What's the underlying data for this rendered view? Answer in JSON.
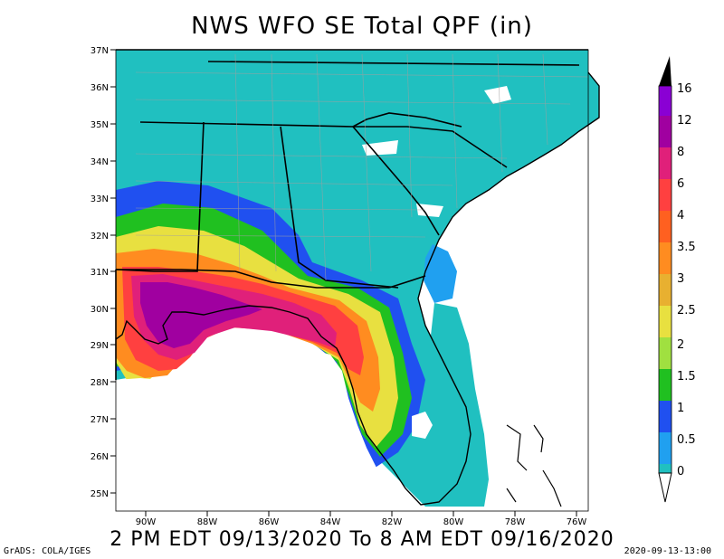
{
  "title": "NWS WFO SE Total QPF (in)",
  "subtitle": "2 PM EDT 09/13/2020 To 8 AM EDT 09/16/2020",
  "footer_left": "GrADS: COLA/IGES",
  "footer_right": "2020-09-13-13:00",
  "lat_labels": [
    "37N",
    "36N",
    "35N",
    "34N",
    "33N",
    "32N",
    "31N",
    "30N",
    "29N",
    "28N",
    "27N",
    "26N",
    "25N"
  ],
  "lon_labels": [
    "90W",
    "88W",
    "86W",
    "84W",
    "82W",
    "80W",
    "78W",
    "76W"
  ],
  "legend": {
    "levels": [
      "16",
      "12",
      "8",
      "6",
      "4",
      "3.5",
      "3",
      "2.5",
      "2",
      "1.5",
      "1",
      "0.5",
      "0"
    ],
    "colors": [
      "#000000",
      "#8a00d4",
      "#a000a0",
      "#e0207a",
      "#ff4040",
      "#ff6020",
      "#ff8c20",
      "#e8b030",
      "#e8e040",
      "#a0e040",
      "#20c020",
      "#2050f0",
      "#20a0f0",
      "#20c0c0",
      "#ffffff"
    ]
  },
  "map": {
    "land_fill": "#20c0c0",
    "ocean_fill": "#ffffff",
    "county_lines": "#a0a0a0",
    "state_lines": "#000000"
  }
}
